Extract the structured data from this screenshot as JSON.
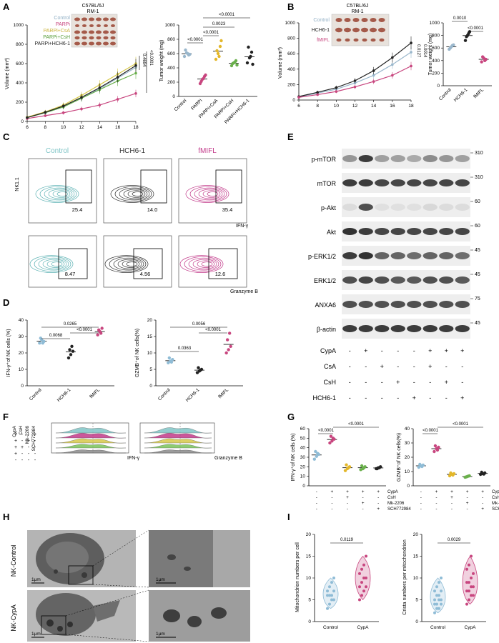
{
  "panels": {
    "A": {
      "label": "A",
      "title": "C57BL/6J",
      "subtitle": "RM-1",
      "legend": [
        "Control",
        "PARPi",
        "PARPi+CsA",
        "PARPi+CsH",
        "PARPi+HCH6-1"
      ],
      "ylabel": "Volume (mm³)",
      "pvals_curve": [
        "0.4694",
        "<0.0001"
      ],
      "yticks": [
        "0",
        "200",
        "400",
        "600",
        "800",
        "1000"
      ],
      "xticks": [
        "6",
        "8",
        "10",
        "12",
        "14",
        "16",
        "18"
      ],
      "weight_ylabel": "Tumor weight (mg)",
      "weight_yticks": [
        "0",
        "200",
        "400",
        "600",
        "800",
        "1000"
      ],
      "weight_cats": [
        "Control",
        "PARPi",
        "PARPi+CsA",
        "PARPi+CsH",
        "PARPi+HCH6-1"
      ],
      "weight_pvals": [
        "<0.0001",
        "<0.0001",
        "0.0023",
        "<0.0001"
      ]
    },
    "B": {
      "label": "B",
      "title": "C57BL/6J",
      "subtitle": "RM-1",
      "legend": [
        "Control",
        "HCH6-1",
        "fMIFL"
      ],
      "ylabel": "Volume (mm³)",
      "pvals_curve": [
        "0.0127",
        "0.0014"
      ],
      "yticks": [
        "0",
        "200",
        "400",
        "600",
        "800",
        "1000"
      ],
      "xticks": [
        "6",
        "8",
        "10",
        "12",
        "14",
        "16",
        "18"
      ],
      "weight_ylabel": "Tumor weight (mg)",
      "weight_yticks": [
        "0",
        "200",
        "400",
        "600",
        "800",
        "1000"
      ],
      "weight_cats": [
        "Control",
        "HCH6-1",
        "fMIFL"
      ],
      "weight_pvals": [
        "0.0010",
        "<0.0001"
      ]
    },
    "C": {
      "label": "C",
      "groups": [
        "Control",
        "HCH6-1",
        "fMIFL"
      ],
      "row1_ylabel": "NK1.1",
      "row1_xlabel": "IFN-γ",
      "row1_values": [
        "25.4",
        "14.0",
        "35.4"
      ],
      "row2_xlabel": "Granzyme B",
      "row2_values": [
        "8.47",
        "4.56",
        "12.6"
      ]
    },
    "D": {
      "label": "D",
      "ifn_ylabel": "IFN-γ⁺of NK cells (%)",
      "ifn_yticks": [
        "0",
        "10",
        "20",
        "30",
        "40"
      ],
      "ifn_pvals": [
        "0.0265",
        "0.0068",
        "<0.0001"
      ],
      "gzmb_ylabel": "GZMB⁺of NK cells(%)",
      "gzmb_yticks": [
        "0",
        "5",
        "10",
        "15",
        "20"
      ],
      "gzmb_pvals": [
        "0.0056",
        "0.0363",
        "<0.0001"
      ],
      "cats": [
        "Control",
        "HCH6-1",
        "fMIFL"
      ]
    },
    "E": {
      "label": "E",
      "bands": [
        {
          "name": "p-mTOR",
          "mw": "310"
        },
        {
          "name": "mTOR",
          "mw": "310"
        },
        {
          "name": "p-Akt",
          "mw": "60"
        },
        {
          "name": "Akt",
          "mw": "60"
        },
        {
          "name": "p-ERK1/2",
          "mw": "45"
        },
        {
          "name": "ERK1/2",
          "mw": "45"
        },
        {
          "name": "ANXA6",
          "mw": "75"
        },
        {
          "name": "β-actin",
          "mw": "45"
        }
      ],
      "treatments": [
        {
          "name": "CypA",
          "signs": [
            "-",
            "+",
            "-",
            "-",
            "-",
            "+",
            "+",
            "+"
          ]
        },
        {
          "name": "CsA",
          "signs": [
            "-",
            "-",
            "+",
            "-",
            "-",
            "+",
            "-",
            "-"
          ]
        },
        {
          "name": "CsH",
          "signs": [
            "-",
            "-",
            "-",
            "+",
            "-",
            "-",
            "+",
            "-"
          ]
        },
        {
          "name": "HCH6-1",
          "signs": [
            "-",
            "-",
            "-",
            "-",
            "+",
            "-",
            "-",
            "+"
          ]
        }
      ]
    },
    "F": {
      "label": "F",
      "row_labels": [
        "CypA",
        "CsH",
        "Mk-2206",
        "SCH772984"
      ],
      "sign_rows": [
        [
          "-",
          "+",
          "+",
          "+",
          "+"
        ],
        [
          "-",
          "-",
          "+",
          "-",
          "-"
        ],
        [
          "-",
          "-",
          "-",
          "+",
          "-"
        ],
        [
          "-",
          "-",
          "-",
          "-",
          "+"
        ]
      ],
      "xlabel1": "IFN-γ",
      "xlabel2": "Granzyme B",
      "colors": [
        "#7fc4c6",
        "#c23a8a",
        "#d6c84a",
        "#7ac35a",
        "#8a8a8a"
      ]
    },
    "G": {
      "label": "G",
      "ifn_ylabel": "IFN-γ⁺of NK cells (%)",
      "ifn_yticks": [
        "0",
        "10",
        "20",
        "30",
        "40",
        "50",
        "60"
      ],
      "ifn_pvals": [
        "<0.0001",
        "<0.0001"
      ],
      "gzmb_ylabel": "GZMB⁺of NK cells(%)",
      "gzmb_yticks": [
        "0",
        "10",
        "20",
        "30",
        "40"
      ],
      "gzmb_pvals": [
        "<0.0001",
        "<0.0001"
      ],
      "row_labels": [
        "CypA",
        "CsH",
        "Mk-2206",
        "SCH772984"
      ],
      "sign_rows": [
        [
          "-",
          "+",
          "+",
          "+",
          "+"
        ],
        [
          "-",
          "-",
          "+",
          "-",
          "-"
        ],
        [
          "-",
          "-",
          "-",
          "+",
          "-"
        ],
        [
          "-",
          "-",
          "-",
          "-",
          "+"
        ]
      ]
    },
    "H": {
      "label": "H",
      "row1": "NK-Control",
      "row2": "NK-CypA",
      "scale": "1μm"
    },
    "I": {
      "label": "I",
      "mito_ylabel": "Mitochondrion numbers per cell",
      "mito_yticks": [
        "0",
        "5",
        "10",
        "15",
        "20"
      ],
      "mito_pval": "0.0119",
      "crista_ylabel": "Crista numbers per mitochondrion",
      "crista_yticks": [
        "0",
        "5",
        "10",
        "15",
        "20"
      ],
      "crista_pval": "0.0029",
      "cats": [
        "Control",
        "CypA"
      ]
    }
  },
  "chart_data": [
    {
      "type": "line",
      "panel": "A",
      "xlabel": "",
      "ylabel": "Volume (mm³)",
      "ylim": [
        0,
        1000
      ],
      "x": [
        6,
        8,
        10,
        12,
        14,
        16,
        18
      ],
      "series": [
        {
          "name": "Control",
          "color": "#9ab7cc",
          "values": [
            40,
            90,
            150,
            240,
            340,
            450,
            560
          ]
        },
        {
          "name": "PARPi",
          "color": "#c8467f",
          "values": [
            30,
            60,
            90,
            130,
            170,
            230,
            290
          ]
        },
        {
          "name": "PARPi+CsA",
          "color": "#d6c84a",
          "values": [
            45,
            100,
            170,
            270,
            380,
            490,
            600
          ]
        },
        {
          "name": "PARPi+CsH",
          "color": "#6ab04c",
          "values": [
            40,
            90,
            150,
            240,
            330,
            420,
            500
          ]
        },
        {
          "name": "PARPi+HCH6-1",
          "color": "#222222",
          "values": [
            40,
            95,
            160,
            250,
            350,
            460,
            580
          ]
        }
      ]
    },
    {
      "type": "scatter",
      "panel": "A",
      "ylabel": "Tumor weight (mg)",
      "ylim": [
        0,
        1000
      ],
      "categories": [
        "Control",
        "PARPi",
        "PARPi+CsA",
        "PARPi+CsH",
        "PARPi+HCH6-1"
      ],
      "colors": [
        "#9ab7cc",
        "#c8467f",
        "#e3b72a",
        "#6ab04c",
        "#222222"
      ],
      "points": [
        [
          560,
          610,
          580,
          650,
          600,
          590
        ],
        [
          180,
          240,
          280,
          210,
          250,
          300
        ],
        [
          520,
          600,
          700,
          640,
          560,
          780
        ],
        [
          430,
          470,
          500,
          460,
          480,
          440
        ],
        [
          470,
          540,
          620,
          690,
          560,
          450
        ]
      ]
    },
    {
      "type": "line",
      "panel": "B",
      "ylabel": "Volume (mm³)",
      "ylim": [
        0,
        1000
      ],
      "x": [
        6,
        8,
        10,
        12,
        14,
        16,
        18
      ],
      "series": [
        {
          "name": "Control",
          "color": "#9ab7cc",
          "values": [
            40,
            90,
            140,
            220,
            320,
            460,
            620
          ]
        },
        {
          "name": "HCH6-1",
          "color": "#222222",
          "values": [
            45,
            100,
            160,
            250,
            380,
            550,
            740
          ]
        },
        {
          "name": "fMIFL",
          "color": "#c8467f",
          "values": [
            35,
            70,
            110,
            170,
            240,
            320,
            440
          ]
        }
      ]
    },
    {
      "type": "scatter",
      "panel": "B",
      "ylabel": "Tumor weight (mg)",
      "ylim": [
        0,
        1000
      ],
      "categories": [
        "Control",
        "HCH6-1",
        "fMIFL"
      ],
      "colors": [
        "#9ab7cc",
        "#222222",
        "#c8467f"
      ],
      "points": [
        [
          580,
          620,
          650,
          600,
          640
        ],
        [
          720,
          800,
          860,
          780,
          830
        ],
        [
          380,
          440,
          420,
          460,
          400
        ]
      ]
    },
    {
      "type": "scatter",
      "panel": "D",
      "ylabel": "IFN-γ⁺of NK cells (%)",
      "ylim": [
        0,
        40
      ],
      "categories": [
        "Control",
        "HCH6-1",
        "fMIFL"
      ],
      "colors": [
        "#8fbcd6",
        "#222222",
        "#c8467f"
      ],
      "points": [
        [
          26,
          28,
          27,
          29,
          26
        ],
        [
          17,
          19,
          21,
          22,
          24
        ],
        [
          31,
          33,
          35,
          34,
          32
        ]
      ]
    },
    {
      "type": "scatter",
      "panel": "D",
      "ylabel": "GZMB⁺of NK cells(%)",
      "ylim": [
        0,
        20
      ],
      "categories": [
        "Control",
        "HCH6-1",
        "fMIFL"
      ],
      "colors": [
        "#8fbcd6",
        "#222222",
        "#c8467f"
      ],
      "points": [
        [
          7,
          7.5,
          8,
          8.5,
          7.2
        ],
        [
          4,
          4.5,
          5,
          5.5,
          4.8
        ],
        [
          10,
          11,
          12,
          14,
          16
        ]
      ]
    },
    {
      "type": "scatter",
      "panel": "G",
      "ylabel": "IFN-γ⁺of NK cells (%)",
      "ylim": [
        0,
        60
      ],
      "categories": [
        "1",
        "2",
        "3",
        "4",
        "5"
      ],
      "colors": [
        "#8fbcd6",
        "#c8467f",
        "#e3b72a",
        "#6ab04c",
        "#222222"
      ],
      "points": [
        [
          28,
          31,
          33,
          36,
          34
        ],
        [
          45,
          47,
          49,
          52,
          50
        ],
        [
          16,
          18,
          20,
          22,
          19
        ],
        [
          17,
          18,
          20,
          21,
          19
        ],
        [
          18,
          19,
          20,
          18,
          19
        ]
      ]
    },
    {
      "type": "scatter",
      "panel": "G",
      "ylabel": "GZMB⁺of NK cells(%)",
      "ylim": [
        0,
        40
      ],
      "categories": [
        "1",
        "2",
        "3",
        "4",
        "5"
      ],
      "colors": [
        "#8fbcd6",
        "#c8467f",
        "#e3b72a",
        "#6ab04c",
        "#222222"
      ],
      "points": [
        [
          13,
          14,
          14.5,
          15,
          13.5
        ],
        [
          24,
          26,
          27,
          28,
          25
        ],
        [
          7,
          8,
          8.5,
          9,
          7.5
        ],
        [
          6,
          6.5,
          7,
          6.2,
          6.8
        ],
        [
          8,
          8.5,
          9,
          9.5,
          8.2
        ]
      ]
    },
    {
      "type": "scatter",
      "panel": "I",
      "ylabel": "Mitochondrion numbers per cell",
      "ylim": [
        0,
        20
      ],
      "categories": [
        "Control",
        "CypA"
      ],
      "colors": [
        "#8fbcd6",
        "#c8467f"
      ],
      "points": [
        [
          3,
          4,
          5,
          5,
          6,
          6,
          6,
          7,
          7,
          8,
          9,
          10
        ],
        [
          5,
          6,
          7,
          8,
          8,
          9,
          10,
          10,
          11,
          12,
          13,
          15
        ]
      ]
    },
    {
      "type": "scatter",
      "panel": "I",
      "ylabel": "Crista numbers per mitochondrion",
      "ylim": [
        0,
        20
      ],
      "categories": [
        "Control",
        "CypA"
      ],
      "colors": [
        "#8fbcd6",
        "#c8467f"
      ],
      "points": [
        [
          2,
          3,
          3,
          4,
          4,
          4,
          5,
          5,
          5,
          6,
          6,
          7,
          7,
          8,
          9,
          10
        ],
        [
          4,
          5,
          6,
          6,
          7,
          7,
          8,
          8,
          9,
          9,
          10,
          11,
          12,
          13,
          15
        ]
      ]
    }
  ]
}
